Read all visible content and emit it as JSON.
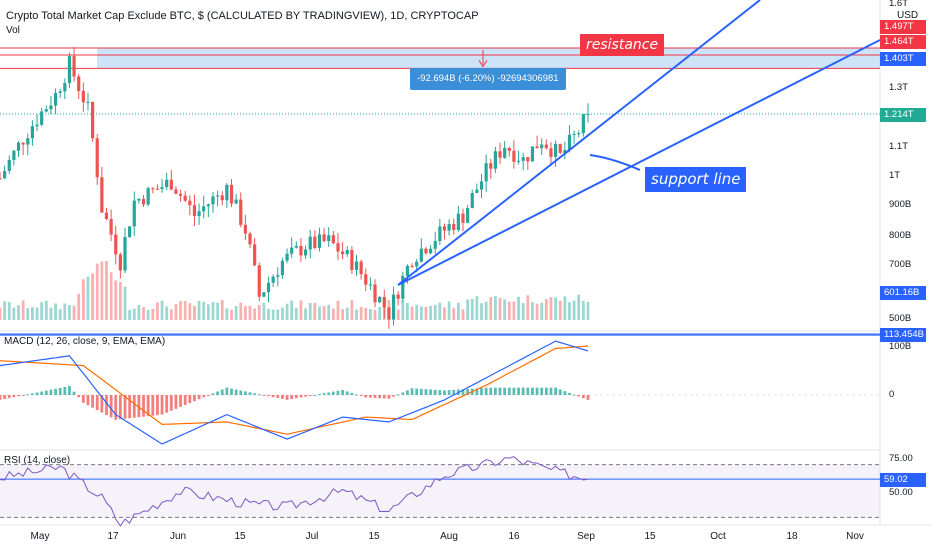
{
  "header": {
    "title": "Crypto Total Market Cap Exclude BTC, $ (CALCULATED BY TRADINGVIEW), 1D, CRYPTOCAP",
    "vol_label": "Vol",
    "currency": "USD"
  },
  "panes": {
    "macd_label": "MACD (12, 26, close, 9, EMA, EMA)",
    "rsi_label": "RSI (14, close)"
  },
  "annotations": {
    "resistance": "resistance",
    "support": "support line",
    "measure": "-92.694B (-6.20%) -92694306981"
  },
  "price_axis": {
    "top_partial": "1.6T",
    "hidden_tag": "1.497T",
    "ticks": [
      "1.3T",
      "1.1T",
      "1T",
      "900B",
      "800B",
      "700B",
      "500B"
    ],
    "tags": [
      "1.464T",
      "1.403T",
      "1.214T",
      "601.16B"
    ]
  },
  "macd_axis": {
    "ticks": [
      "100B",
      "0"
    ],
    "tag": "113.454B"
  },
  "rsi_axis": {
    "ticks": [
      "75.00",
      "50.00"
    ],
    "tag": "59.02"
  },
  "x_axis": {
    "labels": [
      "May",
      "17",
      "Jun",
      "15",
      "Jul",
      "15",
      "Aug",
      "16",
      "Sep",
      "15",
      "Oct",
      "18",
      "Nov"
    ]
  },
  "colors": {
    "up": "#26a69a",
    "down": "#ef5350",
    "trend": "#2962ff",
    "tag_red": "#f23645",
    "tag_blue": "#2962ff",
    "tag_green": "#22ab94",
    "macd_line": "#2962ff",
    "signal_line": "#ff6d00",
    "rsi_line": "#7e57c2"
  },
  "chart_data": [
    {
      "type": "candlestick",
      "title": "Crypto Total Market Cap Exclude BTC, $ (CALCULATED BY TRADINGVIEW), 1D, CRYPTOCAP",
      "y_scale": "log",
      "x_range": [
        "2021-04-27",
        "2021-09-01"
      ],
      "ylim_approx": [
        500000000000,
        1600000000000
      ],
      "series": [
        {
          "name": "close",
          "anchors": [
            [
              "2021-04-27",
              990000000000
            ],
            [
              "2021-05-03",
              1150000000000
            ],
            [
              "2021-05-09",
              1290000000000
            ],
            [
              "2021-05-12",
              1420000000000
            ],
            [
              "2021-05-16",
              1230000000000
            ],
            [
              "2021-05-19",
              900000000000
            ],
            [
              "2021-05-23",
              760000000000
            ],
            [
              "2021-05-26",
              920000000000
            ],
            [
              "2021-06-03",
              980000000000
            ],
            [
              "2021-06-08",
              880000000000
            ],
            [
              "2021-06-15",
              960000000000
            ],
            [
              "2021-06-19",
              840000000000
            ],
            [
              "2021-06-22",
              680000000000
            ],
            [
              "2021-06-27",
              760000000000
            ],
            [
              "2021-07-02",
              800000000000
            ],
            [
              "2021-07-07",
              810000000000
            ],
            [
              "2021-07-12",
              760000000000
            ],
            [
              "2021-07-20",
              645000000000
            ],
            [
              "2021-07-25",
              770000000000
            ],
            [
              "2021-07-31",
              830000000000
            ],
            [
              "2021-08-05",
              880000000000
            ],
            [
              "2021-08-10",
              1010000000000
            ],
            [
              "2021-08-14",
              1100000000000
            ],
            [
              "2021-08-18",
              1050000000000
            ],
            [
              "2021-08-22",
              1120000000000
            ],
            [
              "2021-08-26",
              1060000000000
            ],
            [
              "2021-08-30",
              1150000000000
            ],
            [
              "2021-09-01",
              1214000000000
            ]
          ]
        }
      ],
      "resistance_zone": [
        1403000000000,
        1497000000000
      ],
      "horizontal_levels": [
        1464000000000,
        1403000000000,
        601160000000
      ],
      "last_price": 1214000000000,
      "support_line": [
        [
          "2021-07-20",
          620000000000
        ],
        [
          "2021-09-01",
          1100000000000
        ]
      ],
      "measure": {
        "change": -92694306981,
        "percent": -6.2
      }
    },
    {
      "type": "bar",
      "title": "Vol",
      "x_range": [
        "2021-04-27",
        "2021-09-01"
      ],
      "values_relative": "approximate, peak volume around 2021-05-19"
    },
    {
      "type": "line",
      "title": "MACD (12, 26, close, 9, EMA, EMA)",
      "series": [
        {
          "name": "MACD",
          "anchors": [
            [
              "2021-04-27",
              60000000000
            ],
            [
              "2021-05-12",
              80000000000
            ],
            [
              "2021-05-22",
              -40000000000
            ],
            [
              "2021-06-01",
              -100000000000
            ],
            [
              "2021-06-15",
              -40000000000
            ],
            [
              "2021-06-28",
              -90000000000
            ],
            [
              "2021-07-10",
              -45000000000
            ],
            [
              "2021-07-20",
              -55000000000
            ],
            [
              "2021-08-01",
              -10000000000
            ],
            [
              "2021-08-15",
              60000000000
            ],
            [
              "2021-08-25",
              110000000000
            ],
            [
              "2021-09-01",
              90000000000
            ]
          ]
        },
        {
          "name": "Signal",
          "anchors": [
            [
              "2021-04-27",
              70000000000
            ],
            [
              "2021-05-15",
              60000000000
            ],
            [
              "2021-06-01",
              -60000000000
            ],
            [
              "2021-06-15",
              -55000000000
            ],
            [
              "2021-06-28",
              -80000000000
            ],
            [
              "2021-07-15",
              -45000000000
            ],
            [
              "2021-07-25",
              -50000000000
            ],
            [
              "2021-08-10",
              20000000000
            ],
            [
              "2021-08-25",
              95000000000
            ],
            [
              "2021-09-01",
              100000000000
            ]
          ]
        }
      ],
      "axis_tag": 113454000000
    },
    {
      "type": "line",
      "title": "RSI (14, close)",
      "ylim": [
        25,
        80
      ],
      "band": [
        30,
        70
      ],
      "series": [
        {
          "name": "RSI",
          "anchors": [
            [
              "2021-04-27",
              60
            ],
            [
              "2021-05-10",
              68
            ],
            [
              "2021-05-19",
              45
            ],
            [
              "2021-05-23",
              25
            ],
            [
              "2021-06-05",
              50
            ],
            [
              "2021-06-20",
              40
            ],
            [
              "2021-06-28",
              38
            ],
            [
              "2021-07-10",
              50
            ],
            [
              "2021-07-20",
              35
            ],
            [
              "2021-08-01",
              62
            ],
            [
              "2021-08-15",
              75
            ],
            [
              "2021-08-25",
              65
            ],
            [
              "2021-09-01",
              59.02
            ]
          ]
        }
      ],
      "last_value": 59.02
    }
  ]
}
